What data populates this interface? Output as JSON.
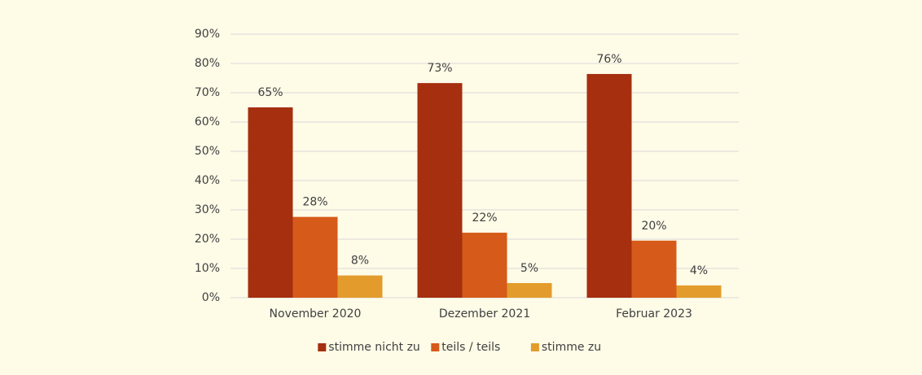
{
  "chart_data": {
    "type": "bar",
    "categories": [
      "November 2020",
      "Dezember 2021",
      "Februar 2023"
    ],
    "series": [
      {
        "name": "stimme nicht zu",
        "color": "#a52f0f",
        "values": [
          65,
          73.3,
          76.4
        ],
        "value_labels": [
          "65%",
          "73%",
          "76%"
        ]
      },
      {
        "name": "teils / teils",
        "color": "#d65a19",
        "values": [
          27.6,
          22.2,
          19.5
        ],
        "value_labels": [
          "28%",
          "22%",
          "20%"
        ]
      },
      {
        "name": "stimme zu",
        "color": "#e39c2b",
        "values": [
          7.6,
          5,
          4.2
        ],
        "value_labels": [
          "8%",
          "5%",
          "4%"
        ]
      }
    ],
    "ylim": [
      0,
      90
    ],
    "yticks": [
      {
        "value": 0,
        "label": "0%"
      },
      {
        "value": 10,
        "label": "10%"
      },
      {
        "value": 20,
        "label": "20%"
      },
      {
        "value": 30,
        "label": "30%"
      },
      {
        "value": 40,
        "label": "40%"
      },
      {
        "value": 50,
        "label": "50%"
      },
      {
        "value": 60,
        "label": "60%"
      },
      {
        "value": 70,
        "label": "70%"
      },
      {
        "value": 80,
        "label": "80%"
      },
      {
        "value": 90,
        "label": "90%"
      }
    ],
    "grid": true,
    "legend": "bottom"
  }
}
